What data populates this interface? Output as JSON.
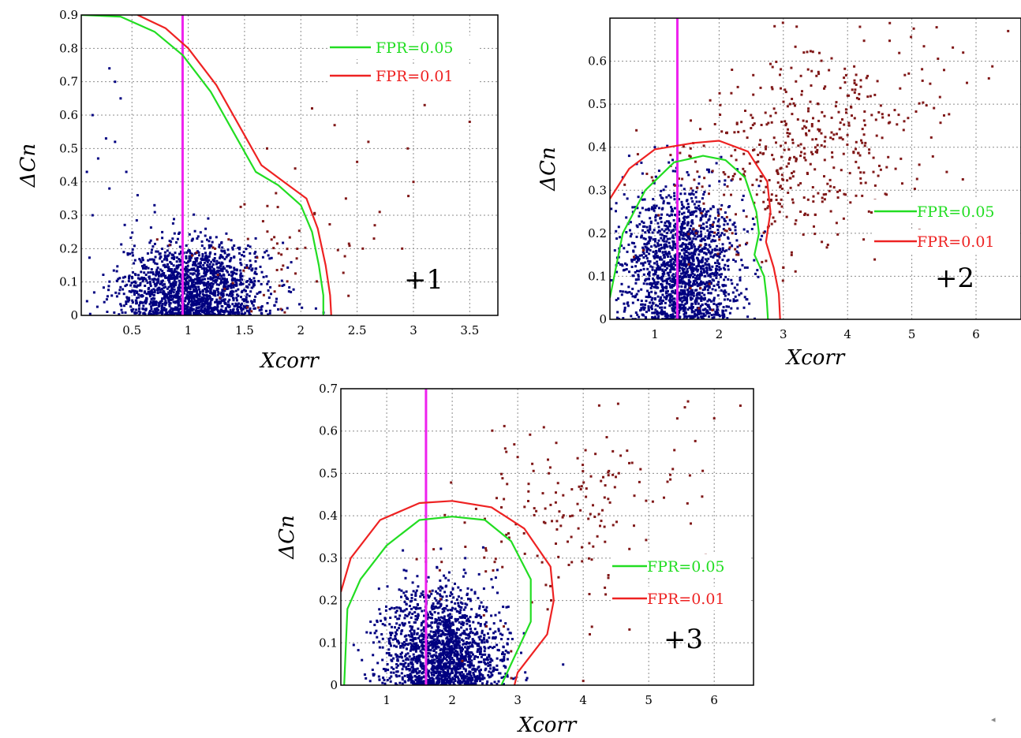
{
  "colors": {
    "background": "#ffffff",
    "grid": "#8c8c8c",
    "axis": "#000000",
    "fpr_005": "#22dd22",
    "fpr_001": "#ee2222",
    "threshold": "#ee22ee",
    "points_decoy": "#000080",
    "points_target": "#801818"
  },
  "corner_mark": "◂",
  "chart_data": [
    {
      "type": "scatter",
      "annotation": "+1",
      "xlabel": "Xcorr",
      "ylabel": "ΔCn",
      "xlim": [
        0.05,
        3.75
      ],
      "ylim": [
        0,
        0.9
      ],
      "xticks": [
        0.5,
        1,
        1.5,
        2,
        2.5,
        3,
        3.5
      ],
      "xtick_labels": [
        "0.5",
        "1",
        "1.5",
        "2",
        "2.5",
        "3",
        "3.5"
      ],
      "yticks": [
        0,
        0.1,
        0.2,
        0.3,
        0.4,
        0.5,
        0.6,
        0.7,
        0.8,
        0.9
      ],
      "ytick_labels": [
        "0",
        "0.1",
        "0.2",
        "0.3",
        "0.4",
        "0.5",
        "0.6",
        "0.7",
        "0.8",
        "0.9"
      ],
      "grid": true,
      "legend_position": "top-right",
      "vertical_line_x": 0.95,
      "series": [
        {
          "name": "FPR=0.05",
          "color": "#22dd22",
          "x": [
            0.05,
            0.4,
            0.7,
            0.95,
            1.2,
            1.45,
            1.6,
            1.8,
            2.0,
            2.1,
            2.16,
            2.2,
            2.2
          ],
          "y": [
            0.9,
            0.895,
            0.85,
            0.78,
            0.67,
            0.52,
            0.43,
            0.39,
            0.33,
            0.25,
            0.15,
            0.06,
            0
          ]
        },
        {
          "name": "FPR=0.01",
          "color": "#ee2222",
          "x": [
            0.55,
            0.8,
            1.0,
            1.25,
            1.5,
            1.65,
            1.85,
            2.05,
            2.15,
            2.22,
            2.26,
            2.27
          ],
          "y": [
            0.9,
            0.86,
            0.8,
            0.69,
            0.54,
            0.45,
            0.4,
            0.35,
            0.26,
            0.15,
            0.06,
            0
          ]
        }
      ],
      "decoy_cloud": {
        "center": [
          1.05,
          0.08
        ],
        "spread": [
          0.32,
          0.07
        ],
        "count": 1700,
        "outliers": [
          [
            0.3,
            0.74
          ],
          [
            0.35,
            0.7
          ],
          [
            0.15,
            0.6
          ],
          [
            0.4,
            0.65
          ],
          [
            0.27,
            0.53
          ],
          [
            0.35,
            0.52
          ],
          [
            0.2,
            0.47
          ],
          [
            0.45,
            0.43
          ],
          [
            0.1,
            0.43
          ],
          [
            0.3,
            0.38
          ],
          [
            0.55,
            0.36
          ],
          [
            0.7,
            0.33
          ],
          [
            0.15,
            0.3
          ]
        ]
      },
      "target_points": {
        "count": 60,
        "center": [
          1.8,
          0.2
        ],
        "spread": [
          0.45,
          0.1
        ],
        "outliers": [
          [
            2.1,
            0.62
          ],
          [
            2.3,
            0.57
          ],
          [
            3.1,
            0.63
          ],
          [
            2.6,
            0.52
          ],
          [
            2.95,
            0.5
          ],
          [
            2.5,
            0.46
          ],
          [
            1.7,
            0.5
          ],
          [
            2.4,
            0.35
          ],
          [
            2.7,
            0.31
          ],
          [
            3.0,
            0.4
          ],
          [
            2.65,
            0.23
          ],
          [
            2.9,
            0.2
          ],
          [
            3.5,
            0.58
          ],
          [
            2.55,
            0.2
          ],
          [
            1.95,
            0.44
          ]
        ]
      }
    },
    {
      "type": "scatter",
      "annotation": "+2",
      "xlabel": "Xcorr",
      "ylabel": "ΔCn",
      "xlim": [
        0.3,
        6.7
      ],
      "ylim": [
        0,
        0.7
      ],
      "xticks": [
        1,
        2,
        3,
        4,
        5,
        6
      ],
      "xtick_labels": [
        "1",
        "2",
        "3",
        "4",
        "5",
        "6"
      ],
      "yticks": [
        0,
        0.1,
        0.2,
        0.3,
        0.4,
        0.5,
        0.6
      ],
      "ytick_labels": [
        "0",
        "0.1",
        "0.2",
        "0.3",
        "0.4",
        "0.5",
        "0.6"
      ],
      "grid": true,
      "legend_position": "right",
      "vertical_line_x": 1.35,
      "series": [
        {
          "name": "FPR=0.05",
          "color": "#22dd22",
          "x": [
            0.3,
            0.5,
            0.85,
            1.3,
            1.75,
            2.1,
            2.4,
            2.58,
            2.62,
            2.55,
            2.7,
            2.74,
            2.76
          ],
          "y": [
            0.05,
            0.2,
            0.3,
            0.365,
            0.38,
            0.37,
            0.33,
            0.25,
            0.2,
            0.15,
            0.1,
            0.05,
            0
          ]
        },
        {
          "name": "FPR=0.01",
          "color": "#ee2222",
          "x": [
            0.3,
            0.6,
            1.0,
            1.6,
            2.0,
            2.45,
            2.75,
            2.8,
            2.73,
            2.85,
            2.93,
            2.95
          ],
          "y": [
            0.28,
            0.35,
            0.395,
            0.41,
            0.415,
            0.39,
            0.32,
            0.25,
            0.18,
            0.12,
            0.06,
            0
          ]
        }
      ],
      "decoy_cloud": {
        "center": [
          1.4,
          0.12
        ],
        "spread": [
          0.45,
          0.09
        ],
        "count": 1700,
        "outliers": [
          [
            0.6,
            0.38
          ],
          [
            1.0,
            0.4
          ],
          [
            0.4,
            0.27
          ],
          [
            0.5,
            0.33
          ]
        ]
      },
      "target_points": {
        "count": 520,
        "center": [
          3.3,
          0.4
        ],
        "spread": [
          1.0,
          0.12
        ],
        "outliers": [
          [
            6.5,
            0.67
          ],
          [
            5.8,
            0.62
          ],
          [
            2.2,
            0.58
          ],
          [
            3.0,
            0.12
          ],
          [
            3.6,
            0.18
          ],
          [
            6.2,
            0.56
          ],
          [
            1.9,
            0.22
          ],
          [
            2.3,
            0.15
          ]
        ]
      }
    },
    {
      "type": "scatter",
      "annotation": "+3",
      "xlabel": "Xcorr",
      "ylabel": "ΔCn",
      "xlim": [
        0.3,
        6.6
      ],
      "ylim": [
        0,
        0.7
      ],
      "xticks": [
        1,
        2,
        3,
        4,
        5,
        6
      ],
      "xtick_labels": [
        "1",
        "2",
        "3",
        "4",
        "5",
        "6"
      ],
      "yticks": [
        0,
        0.1,
        0.2,
        0.3,
        0.4,
        0.5,
        0.6,
        0.7
      ],
      "ytick_labels": [
        "0",
        "0.1",
        "0.2",
        "0.3",
        "0.4",
        "0.5",
        "0.6",
        "0.7"
      ],
      "grid": true,
      "legend_position": "right",
      "vertical_line_x": 1.6,
      "series": [
        {
          "name": "FPR=0.05",
          "color": "#22dd22",
          "x": [
            0.35,
            0.4,
            0.6,
            1.0,
            1.5,
            2.0,
            2.5,
            2.9,
            3.2,
            3.2,
            3.05,
            2.9,
            2.75
          ],
          "y": [
            0,
            0.18,
            0.25,
            0.33,
            0.39,
            0.398,
            0.39,
            0.34,
            0.25,
            0.15,
            0.1,
            0.05,
            0
          ]
        },
        {
          "name": "FPR=0.01",
          "color": "#ee2222",
          "x": [
            0.3,
            0.45,
            0.9,
            1.5,
            2.0,
            2.6,
            3.1,
            3.5,
            3.55,
            3.45,
            3.2,
            3.0,
            2.95
          ],
          "y": [
            0.22,
            0.3,
            0.39,
            0.43,
            0.435,
            0.42,
            0.37,
            0.28,
            0.2,
            0.12,
            0.07,
            0.03,
            0
          ]
        }
      ],
      "decoy_cloud": {
        "center": [
          1.85,
          0.08
        ],
        "spread": [
          0.45,
          0.075
        ],
        "count": 1700,
        "outliers": [
          [
            1.6,
            0.34
          ],
          [
            2.2,
            0.3
          ],
          [
            1.3,
            0.27
          ],
          [
            2.6,
            0.25
          ]
        ]
      },
      "target_points": {
        "count": 190,
        "center": [
          3.9,
          0.42
        ],
        "spread": [
          0.9,
          0.13
        ],
        "outliers": [
          [
            6.4,
            0.66
          ],
          [
            6.0,
            0.63
          ],
          [
            5.6,
            0.67
          ],
          [
            4.0,
            0.01
          ],
          [
            4.1,
            0.12
          ],
          [
            2.9,
            0.08
          ]
        ]
      }
    }
  ]
}
